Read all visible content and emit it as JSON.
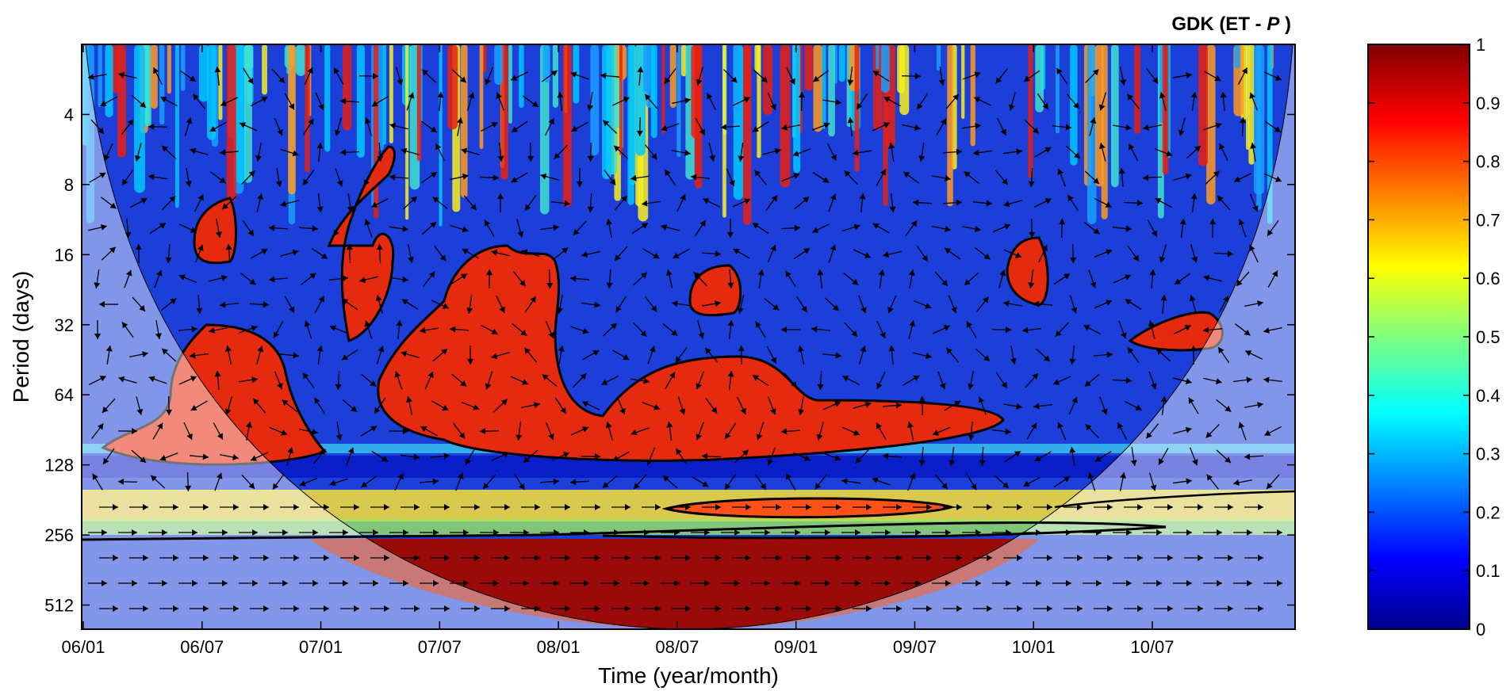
{
  "chart_data": {
    "type": "heatmap",
    "title_prefix": "GDK (ET - ",
    "title_italic": "P",
    "title_suffix": " )",
    "xlabel": "Time (year/month)",
    "ylabel": "Period (days)",
    "x_ticks": [
      "06/01",
      "06/07",
      "07/01",
      "07/07",
      "08/01",
      "08/07",
      "09/01",
      "09/07",
      "10/01",
      "10/07"
    ],
    "y_ticks": [
      "4",
      "8",
      "16",
      "32",
      "64",
      "128",
      "256",
      "512"
    ],
    "y_scale": "log2",
    "y_range": [
      2,
      650
    ],
    "colorbar": {
      "ticks": [
        "0",
        "0.1",
        "0.2",
        "0.3",
        "0.4",
        "0.5",
        "0.6",
        "0.7",
        "0.8",
        "0.9",
        "1"
      ],
      "range": [
        0,
        1
      ],
      "colormap": "jet"
    },
    "high_coherence_regions": [
      {
        "time": "06/07",
        "period_range": [
          40,
          110
        ],
        "coherence": 0.9
      },
      {
        "time": "07/07–08/01",
        "period_range": [
          20,
          120
        ],
        "coherence": 0.9
      },
      {
        "time": "08/07–09/07",
        "period_range": [
          50,
          115
        ],
        "coherence": 0.9
      },
      {
        "time": "08/07",
        "period_range": [
          190,
          220
        ],
        "coherence": 0.85
      },
      {
        "time": "08/01–09/01",
        "period_range": [
          260,
          650
        ],
        "coherence": 1.0
      }
    ]
  }
}
